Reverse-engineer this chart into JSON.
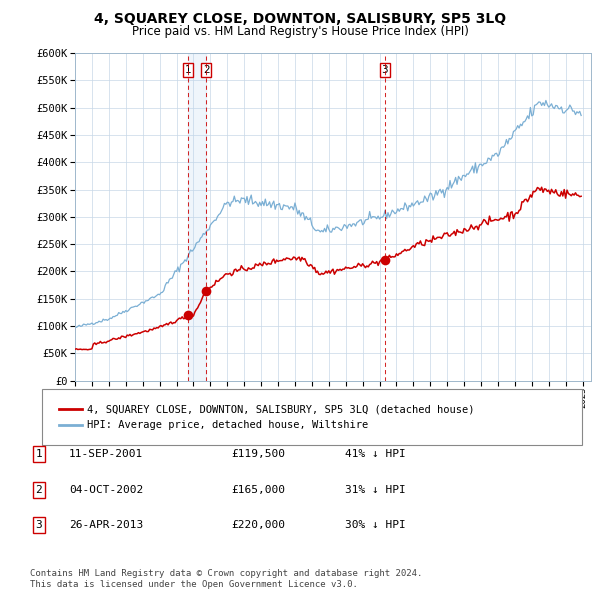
{
  "title": "4, SQUAREY CLOSE, DOWNTON, SALISBURY, SP5 3LQ",
  "subtitle": "Price paid vs. HM Land Registry's House Price Index (HPI)",
  "ylabel_ticks": [
    "£0",
    "£50K",
    "£100K",
    "£150K",
    "£200K",
    "£250K",
    "£300K",
    "£350K",
    "£400K",
    "£450K",
    "£500K",
    "£550K",
    "£600K"
  ],
  "ytick_values": [
    0,
    50000,
    100000,
    150000,
    200000,
    250000,
    300000,
    350000,
    400000,
    450000,
    500000,
    550000,
    600000
  ],
  "xmin": 1995.0,
  "xmax": 2025.5,
  "ymin": 0,
  "ymax": 600000,
  "purchase_dates": [
    2001.69,
    2002.75,
    2013.32
  ],
  "purchase_prices": [
    119500,
    165000,
    220000
  ],
  "purchase_labels": [
    "1",
    "2",
    "3"
  ],
  "vline_color": "#cc0000",
  "hpi_color": "#7bafd4",
  "price_color": "#cc0000",
  "highlight_fill": "#ddeeff",
  "grid_color": "#c8d8e8",
  "bg_color": "#ffffff",
  "legend_entries": [
    "4, SQUAREY CLOSE, DOWNTON, SALISBURY, SP5 3LQ (detached house)",
    "HPI: Average price, detached house, Wiltshire"
  ],
  "table_rows": [
    [
      "1",
      "11-SEP-2001",
      "£119,500",
      "41% ↓ HPI"
    ],
    [
      "2",
      "04-OCT-2002",
      "£165,000",
      "31% ↓ HPI"
    ],
    [
      "3",
      "26-APR-2013",
      "£220,000",
      "30% ↓ HPI"
    ]
  ],
  "footer": "Contains HM Land Registry data © Crown copyright and database right 2024.\nThis data is licensed under the Open Government Licence v3.0."
}
